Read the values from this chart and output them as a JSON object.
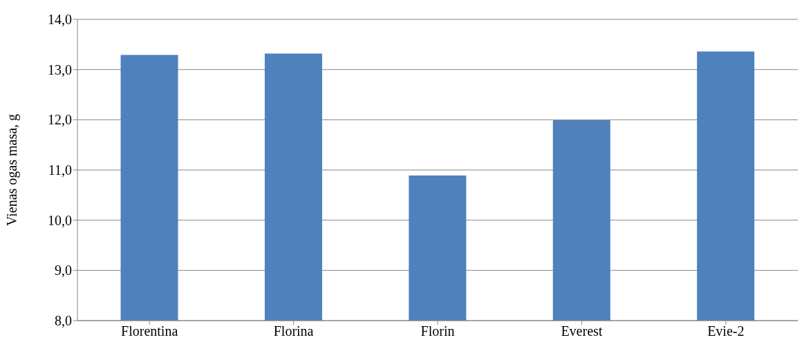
{
  "chart_data": {
    "type": "bar",
    "ylabel": "Vienas ogas masa, g",
    "categories": [
      "Florentina",
      "Florina",
      "Florin",
      "Everest",
      "Evie-2"
    ],
    "values": [
      13.29,
      13.32,
      10.89,
      11.99,
      13.36
    ],
    "color": "#4f81bd",
    "ylim": [
      8,
      14
    ],
    "yticks": [
      {
        "value": 8,
        "label": "8,0"
      },
      {
        "value": 9,
        "label": "9,0"
      },
      {
        "value": 10,
        "label": "10,0"
      },
      {
        "value": 11,
        "label": "11,0"
      },
      {
        "value": 12,
        "label": "12,0"
      },
      {
        "value": 13,
        "label": "13,0"
      },
      {
        "value": 14,
        "label": "14,0"
      }
    ],
    "grid": "y",
    "legend": false
  }
}
